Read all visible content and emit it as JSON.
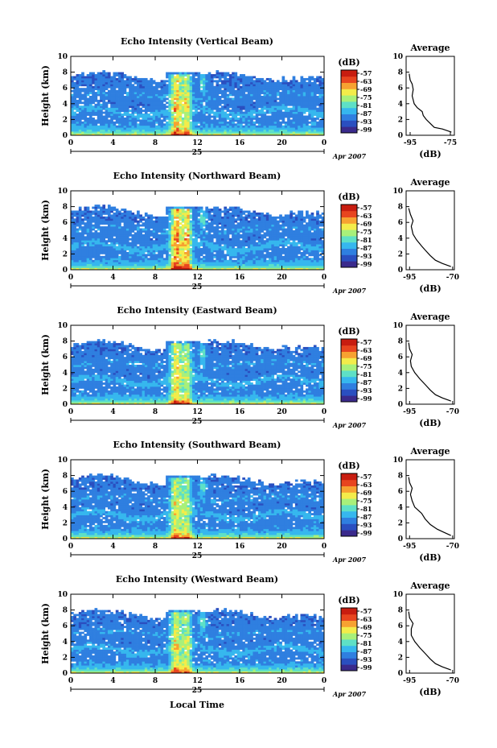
{
  "figure": {
    "x_caption": "Local Time",
    "date_number": "25",
    "date_suffix": "Apr 2007",
    "height_label": "Height (km)",
    "colorbar_unit": "(dB)",
    "avg_title": "Average",
    "avg_unit": "(dB)",
    "colors": {
      "colormap": [
        "#3a2a8c",
        "#2a4fc0",
        "#2f7fe0",
        "#36b7ee",
        "#5ee0c6",
        "#a8f07a",
        "#f3ec4a",
        "#f7a231",
        "#e8451f",
        "#c81d10"
      ],
      "background": "#ffffff"
    }
  },
  "chart_data": [
    {
      "type": "heatmap",
      "title": "Echo Intensity (Vertical Beam)",
      "ylabel": "Height (km)",
      "xticks": [
        "0",
        "4",
        "8",
        "12",
        "16",
        "20",
        "0"
      ],
      "yticks": [
        "0",
        "2",
        "4",
        "6",
        "8",
        "10"
      ],
      "xlim": [
        0,
        24
      ],
      "ylim": [
        0,
        10
      ],
      "colorbar": {
        "label": "(dB)",
        "ticks": [
          "-57",
          "-63",
          "-69",
          "-75",
          "-81",
          "-87",
          "-93",
          "-99"
        ]
      },
      "average": {
        "title": "Average",
        "xlabel": "(dB)",
        "xticks": [
          "-95",
          "-75"
        ],
        "xlim": [
          -97,
          -73
        ],
        "ylim": [
          0,
          10
        ],
        "yticks": [
          "0",
          "2",
          "4",
          "6",
          "8",
          "10"
        ],
        "profile": [
          [
            0.4,
            -74.5
          ],
          [
            0.8,
            -79
          ],
          [
            1.0,
            -83
          ],
          [
            1.5,
            -85
          ],
          [
            2.0,
            -87
          ],
          [
            2.5,
            -88.5
          ],
          [
            3.0,
            -89
          ],
          [
            3.5,
            -91.5
          ],
          [
            4.0,
            -93
          ],
          [
            5.0,
            -94
          ],
          [
            5.8,
            -93.5
          ],
          [
            6.5,
            -94
          ],
          [
            7.0,
            -95
          ],
          [
            7.8,
            -95.5
          ]
        ]
      }
    },
    {
      "type": "heatmap",
      "title": "Echo Intensity (Northward Beam)",
      "ylabel": "Height (km)",
      "xticks": [
        "0",
        "4",
        "8",
        "12",
        "16",
        "20",
        "0"
      ],
      "yticks": [
        "0",
        "2",
        "4",
        "6",
        "8",
        "10"
      ],
      "xlim": [
        0,
        24
      ],
      "ylim": [
        0,
        10
      ],
      "colorbar": {
        "label": "(dB)",
        "ticks": [
          "-57",
          "-63",
          "-69",
          "-75",
          "-81",
          "-87",
          "-93",
          "-99"
        ]
      },
      "average": {
        "title": "Average",
        "xlabel": "(dB)",
        "xticks": [
          "-95",
          "-70"
        ],
        "xlim": [
          -97,
          -69
        ],
        "ylim": [
          0,
          10
        ],
        "yticks": [
          "0",
          "2",
          "4",
          "6",
          "8",
          "10"
        ],
        "profile": [
          [
            0.4,
            -71
          ],
          [
            0.8,
            -76
          ],
          [
            1.2,
            -80
          ],
          [
            1.8,
            -83
          ],
          [
            2.5,
            -86
          ],
          [
            3.0,
            -88
          ],
          [
            3.8,
            -91
          ],
          [
            4.5,
            -93
          ],
          [
            5.5,
            -94
          ],
          [
            6.2,
            -93
          ],
          [
            7.0,
            -94.5
          ],
          [
            7.8,
            -95.5
          ]
        ]
      }
    },
    {
      "type": "heatmap",
      "title": "Echo Intensity (Eastward Beam)",
      "ylabel": "Height (km)",
      "xticks": [
        "0",
        "4",
        "8",
        "12",
        "16",
        "20",
        "0"
      ],
      "yticks": [
        "0",
        "2",
        "4",
        "6",
        "8",
        "10"
      ],
      "xlim": [
        0,
        24
      ],
      "ylim": [
        0,
        10
      ],
      "colorbar": {
        "label": "(dB)",
        "ticks": [
          "-57",
          "-63",
          "-69",
          "-75",
          "-81",
          "-87",
          "-93",
          "-99"
        ]
      },
      "average": {
        "title": "Average",
        "xlabel": "(dB)",
        "xticks": [
          "-95",
          "-70"
        ],
        "xlim": [
          -97,
          -69
        ],
        "ylim": [
          0,
          10
        ],
        "yticks": [
          "0",
          "2",
          "4",
          "6",
          "8",
          "10"
        ],
        "profile": [
          [
            0.4,
            -71
          ],
          [
            0.8,
            -76
          ],
          [
            1.2,
            -80
          ],
          [
            1.8,
            -83
          ],
          [
            2.5,
            -86
          ],
          [
            3.2,
            -89
          ],
          [
            4.0,
            -92
          ],
          [
            4.8,
            -94
          ],
          [
            5.5,
            -94.5
          ],
          [
            6.3,
            -93.5
          ],
          [
            7.0,
            -95
          ],
          [
            7.8,
            -95.5
          ]
        ]
      }
    },
    {
      "type": "heatmap",
      "title": "Echo Intensity (Southward Beam)",
      "ylabel": "Height (km)",
      "xticks": [
        "0",
        "4",
        "8",
        "12",
        "16",
        "20",
        "0"
      ],
      "yticks": [
        "0",
        "2",
        "4",
        "6",
        "8",
        "10"
      ],
      "xlim": [
        0,
        24
      ],
      "ylim": [
        0,
        10
      ],
      "colorbar": {
        "label": "(dB)",
        "ticks": [
          "-57",
          "-63",
          "-69",
          "-75",
          "-81",
          "-87",
          "-93",
          "-99"
        ]
      },
      "average": {
        "title": "Average",
        "xlabel": "(dB)",
        "xticks": [
          "-95",
          "-70"
        ],
        "xlim": [
          -97,
          -69
        ],
        "ylim": [
          0,
          10
        ],
        "yticks": [
          "0",
          "2",
          "4",
          "6",
          "8",
          "10"
        ],
        "profile": [
          [
            0.4,
            -71
          ],
          [
            0.8,
            -75
          ],
          [
            1.2,
            -79
          ],
          [
            1.8,
            -83
          ],
          [
            2.5,
            -86
          ],
          [
            3.2,
            -88
          ],
          [
            4.0,
            -92
          ],
          [
            4.8,
            -93.5
          ],
          [
            5.6,
            -94.5
          ],
          [
            6.4,
            -93.5
          ],
          [
            7.1,
            -95
          ],
          [
            7.8,
            -95.5
          ]
        ]
      }
    },
    {
      "type": "heatmap",
      "title": "Echo Intensity (Westward Beam)",
      "ylabel": "Height (km)",
      "xticks": [
        "0",
        "4",
        "8",
        "12",
        "16",
        "20",
        "0"
      ],
      "yticks": [
        "0",
        "2",
        "4",
        "6",
        "8",
        "10"
      ],
      "xlim": [
        0,
        24
      ],
      "ylim": [
        0,
        10
      ],
      "colorbar": {
        "label": "(dB)",
        "ticks": [
          "-57",
          "-63",
          "-69",
          "-75",
          "-81",
          "-87",
          "-93",
          "-99"
        ]
      },
      "average": {
        "title": "Average",
        "xlabel": "(dB)",
        "xticks": [
          "-95",
          "-70"
        ],
        "xlim": [
          -97,
          -69
        ],
        "ylim": [
          0,
          10
        ],
        "yticks": [
          "0",
          "2",
          "4",
          "6",
          "8",
          "10"
        ],
        "profile": [
          [
            0.4,
            -71
          ],
          [
            0.8,
            -76
          ],
          [
            1.2,
            -80
          ],
          [
            1.8,
            -83
          ],
          [
            2.5,
            -86
          ],
          [
            3.2,
            -89
          ],
          [
            4.0,
            -92
          ],
          [
            4.8,
            -94
          ],
          [
            5.6,
            -94
          ],
          [
            6.3,
            -93
          ],
          [
            7.0,
            -95
          ],
          [
            7.8,
            -95.5
          ]
        ]
      }
    }
  ]
}
